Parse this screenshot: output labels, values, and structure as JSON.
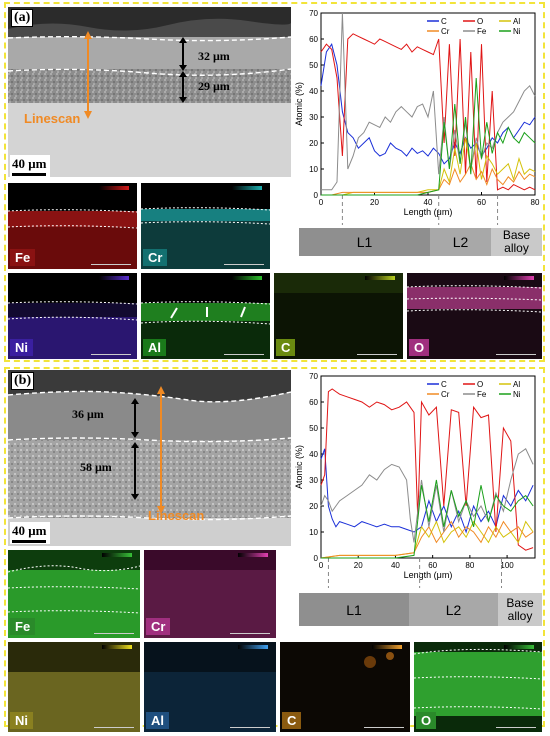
{
  "panels": [
    {
      "letter": "(a)",
      "thickness_labels": [
        "32 μm",
        "29 μm"
      ],
      "linescan_label": "Linescan",
      "scale_bar": "40 μm",
      "maps": [
        {
          "element": "Fe",
          "color": "#d11a1a"
        },
        {
          "element": "Cr",
          "color": "#1fb0b0"
        },
        {
          "element": "Ni",
          "color": "#5a2fd0"
        },
        {
          "element": "Al",
          "color": "#2fc02f"
        },
        {
          "element": "C",
          "color": "#7a9a10"
        },
        {
          "element": "O",
          "color": "#c02f8f"
        }
      ],
      "layers": [
        "L1",
        "L2",
        "Base alloy"
      ]
    },
    {
      "letter": "(b)",
      "thickness_labels": [
        "36 μm",
        "58 μm"
      ],
      "linescan_label": "Linescan",
      "scale_bar": "40 μm",
      "maps": [
        {
          "element": "Fe",
          "color": "#38c038"
        },
        {
          "element": "Cr",
          "color": "#c02f8f"
        },
        {
          "element": "Ni",
          "color": "#bfb32f"
        },
        {
          "element": "Al",
          "color": "#2f7fbf"
        },
        {
          "element": "C",
          "color": "#bf7f1f"
        },
        {
          "element": "O",
          "color": "#38c038"
        }
      ],
      "layers": [
        "L1",
        "L2",
        "Base alloy"
      ]
    }
  ],
  "chart_data": [
    {
      "type": "line",
      "xlabel": "Length (μm)",
      "ylabel": "Atomic (%)",
      "xlim": [
        0,
        80
      ],
      "ylim": [
        0,
        70
      ],
      "xticks": [
        0,
        20,
        40,
        60,
        80
      ],
      "yticks": [
        0,
        10,
        20,
        30,
        40,
        50,
        60,
        70
      ],
      "legend": "top-right",
      "boundaries": [
        8,
        44,
        66
      ],
      "series": [
        {
          "name": "C",
          "color": "#1a2fd8",
          "x": [
            0,
            2,
            4,
            6,
            8,
            10,
            12,
            14,
            16,
            18,
            20,
            22,
            24,
            26,
            28,
            30,
            32,
            34,
            36,
            38,
            40,
            42,
            44,
            46,
            48,
            50,
            52,
            54,
            56,
            58,
            60,
            62,
            64,
            66,
            68,
            70,
            72,
            74,
            76,
            78,
            80
          ],
          "y": [
            42,
            55,
            58,
            50,
            32,
            24,
            22,
            18,
            20,
            22,
            17,
            15,
            16,
            20,
            18,
            17,
            15,
            18,
            16,
            17,
            15,
            18,
            16,
            12,
            14,
            20,
            16,
            22,
            18,
            20,
            15,
            18,
            22,
            20,
            24,
            26,
            22,
            25,
            28,
            27,
            30
          ]
        },
        {
          "name": "O",
          "color": "#e01515",
          "x": [
            0,
            2,
            4,
            6,
            8,
            10,
            12,
            14,
            16,
            18,
            20,
            22,
            24,
            26,
            28,
            30,
            32,
            34,
            36,
            38,
            40,
            42,
            44,
            46,
            48,
            50,
            52,
            54,
            56,
            58,
            60,
            62,
            64,
            66,
            68,
            70,
            72,
            74,
            76,
            78,
            80
          ],
          "y": [
            55,
            58,
            56,
            45,
            15,
            60,
            62,
            61,
            60,
            59,
            58,
            60,
            59,
            58,
            57,
            56,
            58,
            55,
            57,
            56,
            55,
            54,
            60,
            20,
            58,
            15,
            60,
            8,
            55,
            6,
            58,
            5,
            40,
            2,
            3,
            2,
            4,
            3,
            2,
            3,
            2
          ]
        },
        {
          "name": "Al",
          "color": "#d4c20a",
          "x": [
            0,
            4,
            8,
            12,
            16,
            20,
            24,
            28,
            32,
            36,
            40,
            44,
            46,
            48,
            50,
            52,
            54,
            56,
            58,
            60,
            62,
            64,
            66,
            68,
            70,
            72,
            74,
            76,
            78,
            80
          ],
          "y": [
            0,
            0,
            0,
            1,
            1,
            1,
            1,
            1,
            1,
            1,
            2,
            2,
            10,
            5,
            18,
            8,
            22,
            10,
            20,
            6,
            15,
            12,
            8,
            10,
            12,
            6,
            14,
            8,
            10,
            9
          ]
        },
        {
          "name": "Cr",
          "color": "#f08a24",
          "x": [
            0,
            4,
            8,
            12,
            16,
            20,
            24,
            28,
            32,
            36,
            40,
            44,
            46,
            48,
            50,
            52,
            54,
            56,
            58,
            60,
            62,
            64,
            66,
            68,
            70,
            72,
            74,
            76,
            78,
            80
          ],
          "y": [
            0,
            0,
            1,
            1,
            1,
            1,
            1,
            1,
            1,
            1,
            1,
            2,
            6,
            4,
            10,
            5,
            8,
            12,
            6,
            9,
            4,
            10,
            6,
            4,
            7,
            5,
            9,
            6,
            8,
            7
          ]
        },
        {
          "name": "Fe",
          "color": "#8c8c8c",
          "x": [
            0,
            2,
            4,
            6,
            8,
            10,
            12,
            14,
            16,
            18,
            20,
            22,
            24,
            26,
            28,
            30,
            32,
            34,
            36,
            38,
            40,
            42,
            44,
            46,
            48,
            50,
            52,
            54,
            56,
            58,
            60,
            62,
            64,
            66,
            68,
            70,
            72,
            74,
            76,
            78,
            80
          ],
          "y": [
            2,
            2,
            2,
            5,
            70,
            10,
            15,
            22,
            24,
            28,
            27,
            26,
            30,
            28,
            32,
            34,
            32,
            30,
            34,
            35,
            30,
            40,
            8,
            30,
            10,
            25,
            12,
            28,
            10,
            22,
            14,
            20,
            18,
            24,
            28,
            30,
            32,
            36,
            40,
            42,
            38
          ]
        },
        {
          "name": "Ni",
          "color": "#1aa01a",
          "x": [
            0,
            4,
            8,
            12,
            16,
            20,
            24,
            28,
            32,
            36,
            40,
            44,
            46,
            48,
            50,
            52,
            54,
            56,
            58,
            60,
            62,
            64,
            66,
            68,
            70,
            72,
            74,
            76,
            78,
            80
          ],
          "y": [
            0,
            0,
            0,
            0,
            0,
            0,
            0,
            0,
            0,
            0,
            1,
            2,
            28,
            10,
            35,
            12,
            30,
            8,
            45,
            14,
            28,
            16,
            24,
            20,
            26,
            22,
            20,
            24,
            22,
            20
          ]
        }
      ]
    },
    {
      "type": "line",
      "xlabel": "Length (μm)",
      "ylabel": "Atomic (%)",
      "xlim": [
        0,
        115
      ],
      "ylim": [
        0,
        70
      ],
      "xticks": [
        0,
        20,
        40,
        60,
        80,
        100
      ],
      "yticks": [
        0,
        10,
        20,
        30,
        40,
        50,
        60,
        70
      ],
      "legend": "top-right",
      "boundaries": [
        4,
        53,
        97
      ],
      "series": [
        {
          "name": "C",
          "color": "#1a2fd8",
          "x": [
            0,
            2,
            4,
            6,
            8,
            10,
            14,
            18,
            22,
            26,
            30,
            34,
            38,
            42,
            46,
            50,
            54,
            58,
            62,
            66,
            70,
            74,
            78,
            82,
            86,
            90,
            94,
            98,
            102,
            106,
            110,
            114
          ],
          "y": [
            38,
            42,
            20,
            15,
            12,
            14,
            13,
            12,
            14,
            13,
            12,
            13,
            12,
            12,
            11,
            10,
            12,
            22,
            14,
            20,
            12,
            18,
            10,
            20,
            14,
            18,
            12,
            24,
            20,
            26,
            22,
            28
          ]
        },
        {
          "name": "O",
          "color": "#e01515",
          "x": [
            0,
            2,
            4,
            6,
            8,
            10,
            14,
            18,
            22,
            26,
            30,
            34,
            38,
            42,
            46,
            50,
            52,
            54,
            58,
            62,
            66,
            70,
            74,
            78,
            82,
            86,
            90,
            94,
            98,
            102,
            106,
            110,
            114
          ],
          "y": [
            28,
            32,
            64,
            65,
            64,
            63,
            62,
            61,
            60,
            58,
            60,
            59,
            57,
            58,
            60,
            56,
            15,
            60,
            55,
            58,
            20,
            57,
            56,
            20,
            58,
            54,
            55,
            10,
            50,
            45,
            5,
            3,
            4
          ]
        },
        {
          "name": "Al",
          "color": "#d4c20a",
          "x": [
            0,
            10,
            20,
            30,
            40,
            50,
            54,
            58,
            62,
            66,
            70,
            74,
            78,
            82,
            86,
            90,
            94,
            98,
            102,
            106,
            110,
            114
          ],
          "y": [
            0,
            1,
            1,
            1,
            1,
            2,
            12,
            8,
            14,
            6,
            10,
            12,
            8,
            14,
            10,
            6,
            12,
            8,
            10,
            6,
            14,
            10
          ]
        },
        {
          "name": "Cr",
          "color": "#f08a24",
          "x": [
            0,
            10,
            20,
            30,
            40,
            50,
            54,
            58,
            62,
            66,
            70,
            74,
            78,
            82,
            86,
            90,
            94,
            98,
            102,
            106,
            110,
            114
          ],
          "y": [
            0,
            1,
            1,
            1,
            1,
            2,
            8,
            12,
            6,
            10,
            14,
            8,
            12,
            10,
            6,
            12,
            8,
            14,
            10,
            12,
            8,
            10
          ]
        },
        {
          "name": "Fe",
          "color": "#8c8c8c",
          "x": [
            0,
            2,
            4,
            6,
            8,
            10,
            14,
            18,
            22,
            26,
            30,
            34,
            38,
            42,
            46,
            48,
            50,
            54,
            58,
            62,
            66,
            70,
            74,
            78,
            82,
            86,
            90,
            94,
            98,
            102,
            106,
            110,
            114
          ],
          "y": [
            20,
            24,
            22,
            18,
            20,
            22,
            24,
            26,
            28,
            32,
            30,
            34,
            36,
            35,
            30,
            15,
            6,
            30,
            12,
            28,
            10,
            26,
            14,
            22,
            16,
            20,
            14,
            25,
            18,
            30,
            40,
            42,
            36
          ]
        },
        {
          "name": "Ni",
          "color": "#1aa01a",
          "x": [
            0,
            10,
            20,
            30,
            40,
            50,
            54,
            58,
            62,
            66,
            70,
            74,
            78,
            82,
            86,
            90,
            94,
            98,
            102,
            106,
            110,
            114
          ],
          "y": [
            0,
            0,
            0,
            0,
            0,
            1,
            28,
            14,
            30,
            12,
            26,
            16,
            22,
            12,
            28,
            14,
            24,
            20,
            18,
            22,
            24,
            20
          ]
        }
      ]
    }
  ]
}
